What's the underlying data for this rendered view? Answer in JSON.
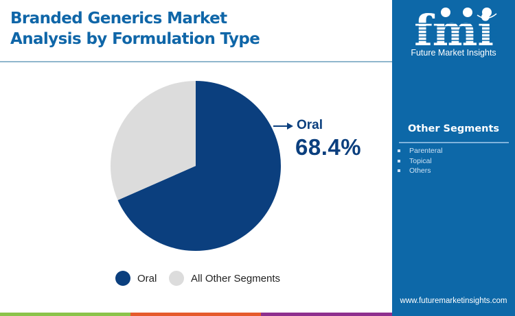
{
  "header": {
    "title_line1": "Branded Generics Market",
    "title_line2": "Analysis by Formulation Type"
  },
  "callout": {
    "label": "Oral",
    "value": "68.4%"
  },
  "legend": [
    {
      "label": "Oral",
      "color": "#0b3f7e"
    },
    {
      "label": "All Other Segments",
      "color": "#dcdcdc"
    }
  ],
  "sidebar": {
    "logo_text": "fmi",
    "logo_subtitle": "Future Market Insights",
    "segments_title": "Other Segments",
    "segments": [
      "Parenteral",
      "Topical",
      "Others"
    ],
    "url": "www.futuremarketinsights.com"
  },
  "colors": {
    "primary": "#0b3f7e",
    "other": "#dcdcdc",
    "title": "#0f66a8",
    "sidebar": "#0d68a8",
    "bar_green": "#8bc34a",
    "bar_orange": "#e55a2b",
    "bar_purple": "#8e2f8e"
  },
  "chart_data": {
    "type": "pie",
    "title": "Branded Generics Market Analysis by Formulation Type",
    "categories": [
      "Oral",
      "All Other Segments"
    ],
    "values": [
      68.4,
      31.6
    ],
    "unit": "%",
    "annotations": [
      {
        "label": "Oral",
        "value": "68.4%"
      }
    ],
    "legend_position": "bottom",
    "other_segments_detail": [
      "Parenteral",
      "Topical",
      "Others"
    ]
  }
}
